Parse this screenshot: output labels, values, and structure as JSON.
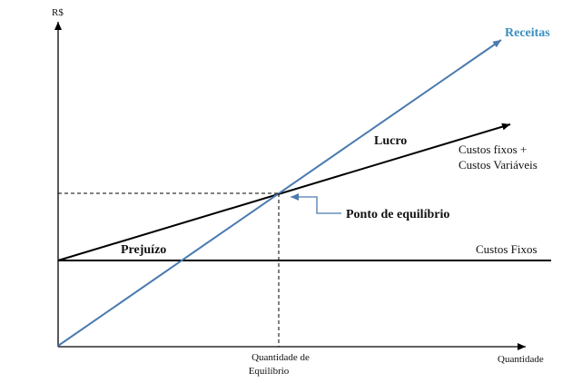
{
  "diagram": {
    "y_axis_label": "R$",
    "x_axis_label": "Quantidade",
    "equilibrium_quantity_label": [
      "Quantidade de",
      "Equilíbrio"
    ],
    "revenue_label": "Receitas",
    "total_cost_label": [
      "Custos fixos +",
      "Custos Variáveis"
    ],
    "fixed_cost_label": "Custos Fixos",
    "profit_label": "Lucro",
    "loss_label": "Prejuízo",
    "breakeven_label": "Ponto de equilíbrio"
  },
  "colors": {
    "revenue_line": "#4a7ab0",
    "revenue_text": "#3a8fbf",
    "cost_lines": "#000000",
    "axes": "#000000",
    "guide_lines": "#000000"
  }
}
